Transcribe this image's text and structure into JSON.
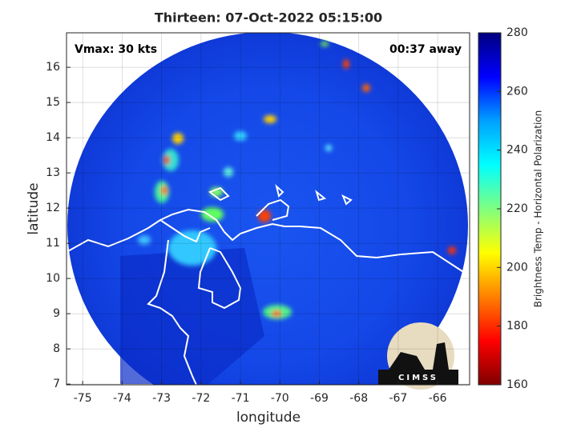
{
  "chart_data": {
    "type": "map",
    "title": "Thirteen: 07-Oct-2022 05:15:00",
    "annotations": [
      "Vmax: 30 kts",
      "00:37 away"
    ],
    "xlabel": "longitude",
    "ylabel": "latitude",
    "xlim": [
      -75.41,
      -65.19
    ],
    "ylim": [
      6.98,
      16.98
    ],
    "xticks": [
      -75,
      -74,
      -73,
      -72,
      -71,
      -70,
      -69,
      -68,
      -67,
      -66
    ],
    "yticks": [
      7,
      8,
      9,
      10,
      11,
      12,
      13,
      14,
      15,
      16
    ],
    "grid": true,
    "colorbar": {
      "label": "Brightness Temp - Horizontal Polarization",
      "clim": [
        160,
        280
      ],
      "ticks": [
        160,
        180,
        200,
        220,
        240,
        260,
        280
      ],
      "colormap": [
        "#7f0000",
        "#ff0000",
        "#ff8000",
        "#ffff00",
        "#80ff80",
        "#00ffff",
        "#00a0ff",
        "#0000ff",
        "#00007f"
      ]
    },
    "logo": "CIMSS"
  }
}
